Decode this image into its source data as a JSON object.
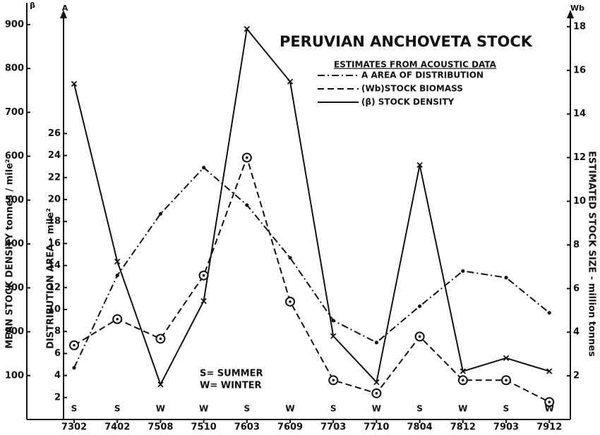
{
  "chart_data": {
    "type": "line",
    "title": "PERUVIAN ANCHOVETA STOCK",
    "subtitle": "ESTIMATES FROM ACOUSTIC DATA",
    "categories": [
      "7302",
      "7402",
      "7508",
      "7510",
      "7603",
      "7609",
      "7703",
      "7710",
      "7804",
      "7812",
      "7903",
      "7912"
    ],
    "seasons": [
      "S",
      "S",
      "W",
      "W",
      "S",
      "W",
      "S",
      "W",
      "S",
      "W",
      "S",
      "W"
    ],
    "annotations": [
      "S= SUMMER",
      "W= WINTER"
    ],
    "ysymbol": "β",
    "ylabel": "MEAN STOCK DENSITY tonnes / mile²",
    "ylim": [
      0,
      940
    ],
    "yticks": [
      100,
      200,
      300,
      400,
      500,
      600,
      700,
      800,
      900
    ],
    "y3symbol": "A",
    "y3label": "DISTRIBUTION AREA - mile²",
    "y3lim": [
      0,
      37.5
    ],
    "y3ticks": [
      2,
      4,
      6,
      8,
      10,
      12,
      14,
      16,
      18,
      20,
      22,
      24,
      26
    ],
    "y2symbol": "Wb",
    "y2label": "ESTIMATED STOCK SIZE - million tonnes",
    "y2lim": [
      0,
      18.9
    ],
    "y2ticks": [
      2,
      4,
      6,
      8,
      10,
      12,
      14,
      16,
      18
    ],
    "series": [
      {
        "name": "A AREA OF DISTRIBUTION",
        "color": "#111111",
        "linestyle": "dashdot",
        "marker": "dot",
        "axis": "y3",
        "values": [
          4.7,
          13.1,
          18.7,
          22.9,
          19.5,
          14.7,
          9.0,
          7.0,
          10.3,
          13.5,
          12.9,
          9.7
        ]
      },
      {
        "name": "(Wb)STOCK BIOMASS",
        "color": "#111111",
        "linestyle": "dashed",
        "marker": "circle",
        "axis": "y2",
        "values": [
          3.4,
          4.6,
          3.7,
          6.6,
          12.0,
          5.4,
          1.8,
          1.2,
          3.8,
          1.8,
          1.8,
          0.8
        ]
      },
      {
        "name": "(β) STOCK DENSITY",
        "color": "#111111",
        "linestyle": "solid",
        "marker": "x",
        "axis": "y",
        "values": [
          765,
          360,
          80,
          270,
          890,
          770,
          190,
          85,
          580,
          110,
          140,
          110
        ]
      }
    ]
  }
}
